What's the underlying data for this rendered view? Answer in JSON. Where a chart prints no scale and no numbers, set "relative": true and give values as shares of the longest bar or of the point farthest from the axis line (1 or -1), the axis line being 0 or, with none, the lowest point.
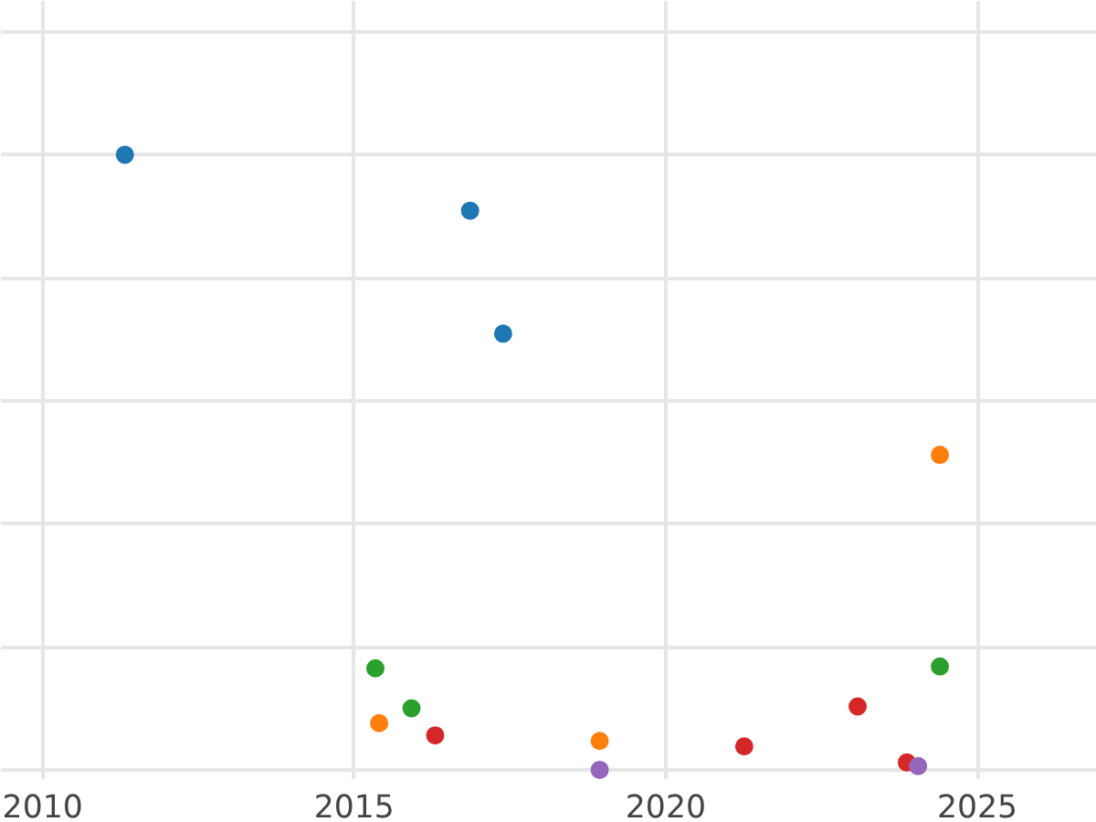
{
  "chart_data": {
    "type": "scatter",
    "relative": true,
    "grid": true,
    "marker": "circle",
    "xlim": [
      2009.33,
      2026.92
    ],
    "xticks": [
      2010,
      2015,
      2020,
      2025
    ],
    "series": [
      {
        "color": "#1f77b4",
        "x": [
          2011.32,
          2016.86,
          2017.39
        ],
        "values": [
          1.0,
          0.909,
          0.709
        ]
      },
      {
        "color": "#ff7f0e",
        "x": [
          2024.4,
          2015.4,
          2018.94
        ],
        "values": [
          0.512,
          0.076,
          0.047
        ]
      },
      {
        "color": "#2ca02c",
        "x": [
          2015.34,
          2024.4,
          2015.92
        ],
        "values": [
          0.165,
          0.168,
          0.1
        ]
      },
      {
        "color": "#d62728",
        "x": [
          2016.3,
          2021.26,
          2023.08,
          2023.87
        ],
        "values": [
          0.056,
          0.038,
          0.103,
          0.012
        ]
      },
      {
        "color": "#9467bd",
        "x": [
          2024.05,
          2018.94
        ],
        "values": [
          0.006,
          0.0
        ]
      }
    ]
  }
}
